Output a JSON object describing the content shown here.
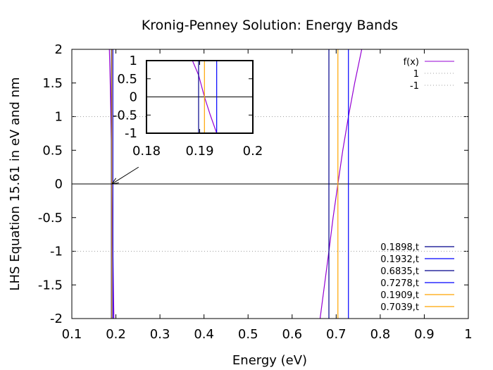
{
  "chart_data": {
    "type": "line",
    "title": "Kronig-Penney Solution: Energy Bands",
    "xlabel": "Energy (eV)",
    "ylabel": "LHS Equation 15.61 in eV and nm",
    "xlim": [
      0.1,
      1.0
    ],
    "ylim": [
      -2,
      2
    ],
    "x_ticks": [
      "0.1",
      "0.2",
      "0.3",
      "0.4",
      "0.5",
      "0.6",
      "0.7",
      "0.8",
      "0.9",
      "1"
    ],
    "y_ticks": [
      "-2",
      "-1.5",
      "-1",
      "-0.5",
      "0",
      "0.5",
      "1",
      "1.5",
      "2"
    ],
    "grid": false,
    "legend_position": "right",
    "series": [
      {
        "name": "f(x)",
        "color": "#9400d3",
        "style": "solid",
        "points": [
          [
            0.1852,
            2.0
          ],
          [
            0.187,
            1.55
          ],
          [
            0.1885,
            1.05
          ],
          [
            0.1898,
            0.6
          ],
          [
            0.1909,
            0.0
          ],
          [
            0.192,
            -0.5
          ],
          [
            0.1932,
            -1.0
          ],
          [
            0.1945,
            -1.6
          ],
          [
            0.1955,
            -2.0
          ],
          [
            0.6635,
            -2.0
          ],
          [
            0.6835,
            -1.0
          ],
          [
            0.693,
            -0.5
          ],
          [
            0.7039,
            0.0
          ],
          [
            0.715,
            0.5
          ],
          [
            0.7278,
            1.0
          ],
          [
            0.742,
            1.5
          ],
          [
            0.758,
            2.0
          ]
        ]
      },
      {
        "name": "1",
        "color": "#a0a0a0",
        "style": "dotted",
        "y": 1
      },
      {
        "name": "-1",
        "color": "#a0a0a0",
        "style": "dotted",
        "y": -1
      },
      {
        "name": "0.1898,t",
        "color": "#00008b",
        "style": "solid",
        "x": 0.1898
      },
      {
        "name": "0.1932,t",
        "color": "#0000ff",
        "style": "solid",
        "x": 0.1932
      },
      {
        "name": "0.6835,t",
        "color": "#00008b",
        "style": "solid",
        "x": 0.6835
      },
      {
        "name": "0.7278,t",
        "color": "#0000ff",
        "style": "solid",
        "x": 0.7278
      },
      {
        "name": "0.1909,t",
        "color": "#ffa500",
        "style": "solid",
        "x": 0.1909
      },
      {
        "name": "0.7039,t",
        "color": "#ffa500",
        "style": "solid",
        "x": 0.7039
      }
    ],
    "zero_line": {
      "y": 0,
      "color": "#000000"
    },
    "annotation": {
      "type": "arrow",
      "from": [
        0.2515,
        0.25
      ],
      "to": [
        0.1909,
        0.0
      ]
    },
    "inset": {
      "xlim": [
        0.18,
        0.2
      ],
      "ylim": [
        -1,
        1
      ],
      "x_ticks": [
        "0.18",
        "0.19",
        "0.2"
      ],
      "y_ticks": [
        "-1",
        "-0.5",
        "0",
        "0.5",
        "1"
      ]
    }
  }
}
